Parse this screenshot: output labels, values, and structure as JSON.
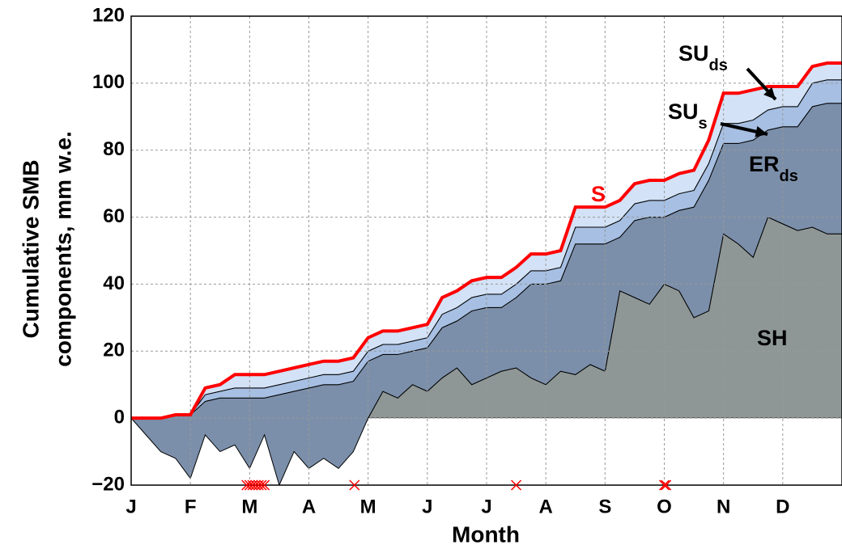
{
  "chart_data": {
    "type": "stacked-area",
    "xlabel": "Month",
    "ylabel": [
      "Cumulative SMB",
      "components, mm w.e."
    ],
    "xlim": [
      0,
      12
    ],
    "ylim": [
      -20,
      120
    ],
    "xticks": [
      {
        "value": 0,
        "label": "J"
      },
      {
        "value": 1,
        "label": "F"
      },
      {
        "value": 2,
        "label": "M"
      },
      {
        "value": 3,
        "label": "A"
      },
      {
        "value": 4,
        "label": "M"
      },
      {
        "value": 5,
        "label": "J"
      },
      {
        "value": 6,
        "label": "J"
      },
      {
        "value": 7,
        "label": "A"
      },
      {
        "value": 8,
        "label": "S"
      },
      {
        "value": 9,
        "label": "O"
      },
      {
        "value": 10,
        "label": "N"
      },
      {
        "value": 11,
        "label": "D"
      }
    ],
    "yticks": [
      {
        "value": -20,
        "label": "−20"
      },
      0,
      20,
      40,
      60,
      80,
      100,
      120
    ],
    "grid": true,
    "x": [
      0,
      0.25,
      0.5,
      0.75,
      1,
      1.25,
      1.5,
      1.75,
      2,
      2.25,
      2.5,
      2.75,
      3,
      3.25,
      3.5,
      3.75,
      4,
      4.25,
      4.5,
      4.75,
      5,
      5.25,
      5.5,
      5.75,
      6,
      6.25,
      6.5,
      6.75,
      7,
      7.25,
      7.5,
      7.75,
      8,
      8.25,
      8.5,
      8.75,
      9,
      9.25,
      9.5,
      9.75,
      10,
      10.25,
      10.5,
      10.75,
      11,
      11.25,
      11.5,
      11.75,
      12
    ],
    "series": [
      {
        "name": "SH",
        "color": "#8e9796",
        "values": [
          0,
          -5,
          -10,
          -12,
          -18,
          -5,
          -10,
          -8,
          -15,
          -5,
          -20,
          -10,
          -15,
          -12,
          -15,
          -10,
          0,
          8,
          6,
          10,
          8,
          12,
          15,
          10,
          12,
          14,
          15,
          12,
          10,
          14,
          13,
          16,
          14,
          38,
          36,
          34,
          40,
          38,
          30,
          32,
          55,
          52,
          48,
          60,
          58,
          56,
          57,
          55,
          55
        ]
      },
      {
        "name": "ER",
        "subscript": "ds",
        "color": "#7b8faa",
        "values": [
          0,
          5,
          10,
          13,
          19,
          10,
          16,
          14,
          21,
          11,
          27,
          18,
          24,
          22,
          25,
          21,
          17,
          11,
          13,
          10,
          13,
          15,
          14,
          22,
          21,
          19,
          21,
          28,
          30,
          27,
          39,
          36,
          38,
          16,
          23,
          26,
          20,
          24,
          33,
          39,
          27,
          30,
          35,
          26,
          29,
          31,
          36,
          39,
          39
        ]
      },
      {
        "name": "SU",
        "subscript": "s",
        "color": "#a6bfe2",
        "values": [
          0,
          0,
          0,
          0,
          0,
          2,
          2,
          3,
          3,
          3,
          3,
          3,
          3,
          3,
          3,
          3,
          3,
          3,
          3,
          3,
          3,
          4,
          4,
          4,
          4,
          4,
          4,
          4,
          4,
          4,
          5,
          5,
          5,
          5,
          5,
          5,
          5,
          5,
          5,
          5,
          6,
          6,
          6,
          6,
          6,
          6,
          7,
          7,
          7
        ]
      },
      {
        "name": "SU",
        "subscript": "ds",
        "color": "#d3e2f6",
        "values": [
          0,
          0,
          0,
          0,
          0,
          2,
          2,
          4,
          4,
          4,
          4,
          4,
          4,
          4,
          4,
          4,
          4,
          4,
          4,
          4,
          4,
          5,
          5,
          5,
          5,
          5,
          5,
          5,
          5,
          5,
          6,
          6,
          6,
          6,
          6,
          6,
          6,
          6,
          6,
          7,
          9,
          9,
          9,
          7,
          6,
          6,
          5,
          5,
          5
        ]
      },
      {
        "name": "S",
        "color": "#ff0000",
        "type": "line",
        "values": [
          0,
          0,
          0,
          1,
          1,
          9,
          10,
          13,
          13,
          13,
          14,
          15,
          16,
          17,
          17,
          18,
          24,
          26,
          26,
          27,
          28,
          36,
          38,
          41,
          42,
          42,
          45,
          49,
          49,
          50,
          63,
          63,
          63,
          65,
          70,
          71,
          71,
          73,
          74,
          83,
          97,
          97,
          98,
          99,
          99,
          99,
          105,
          106,
          106
        ]
      }
    ],
    "event_x": [
      1.95,
      2.0,
      2.05,
      2.1,
      2.15,
      2.2,
      2.25,
      3.77,
      6.5,
      9.0,
      9.03
    ],
    "event_y": -20,
    "event_color": "#ff0000"
  }
}
